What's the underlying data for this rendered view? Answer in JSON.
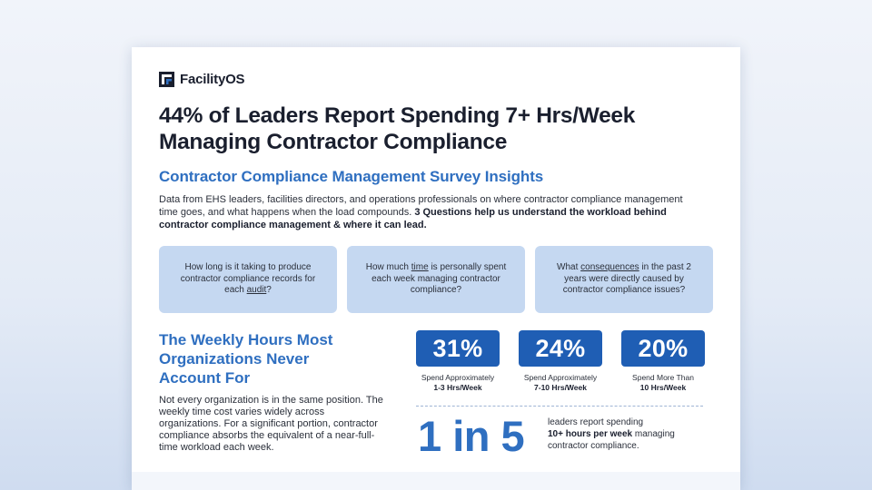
{
  "brand": {
    "name": "FacilityOS",
    "accent": "#2f6fc0",
    "dark_blue": "#1f5eb4",
    "card_bg": "#c5d8f1"
  },
  "title_line1": "44% of Leaders Report Spending 7+ Hrs/Week",
  "title_line2": "Managing Contractor Compliance",
  "subtitle": "Contractor Compliance Management Survey Insights",
  "intro": {
    "plain": "Data from EHS leaders, facilities directors, and operations professionals on where contractor compliance management time goes, and what happens when the load compounds.",
    "bold": "3 Questions help us understand the workload behind contractor compliance management & where it can lead."
  },
  "questions": [
    {
      "before": "How long is it taking to produce contractor compliance records for each",
      "underlined": "audit",
      "after": "?"
    },
    {
      "before": "How much",
      "underlined": "time",
      "after": "is personally spent each week managing contractor compliance?"
    },
    {
      "before": "What",
      "underlined": "consequences",
      "after": "in the past 2 years were directly caused by contractor compliance issues?"
    }
  ],
  "section": {
    "heading": "The Weekly Hours Most Organizations Never Account For",
    "body": "Not every organization is in the same position. The weekly time cost varies widely across organizations. For a significant portion, contractor compliance absorbs the equivalent of a near-full-time workload each week."
  },
  "stats": [
    {
      "value": "31%",
      "label": "Spend Approximately",
      "range": "1-3 Hrs/Week"
    },
    {
      "value": "24%",
      "label": "Spend Approximately",
      "range": "7-10 Hrs/Week"
    },
    {
      "value": "20%",
      "label": "Spend More Than",
      "range": "10 Hrs/Week"
    }
  ],
  "highlight": {
    "ratio": "1 in 5",
    "text_before": "leaders report spending",
    "text_bold": "10+ hours per week",
    "text_after": "managing contractor compliance."
  }
}
